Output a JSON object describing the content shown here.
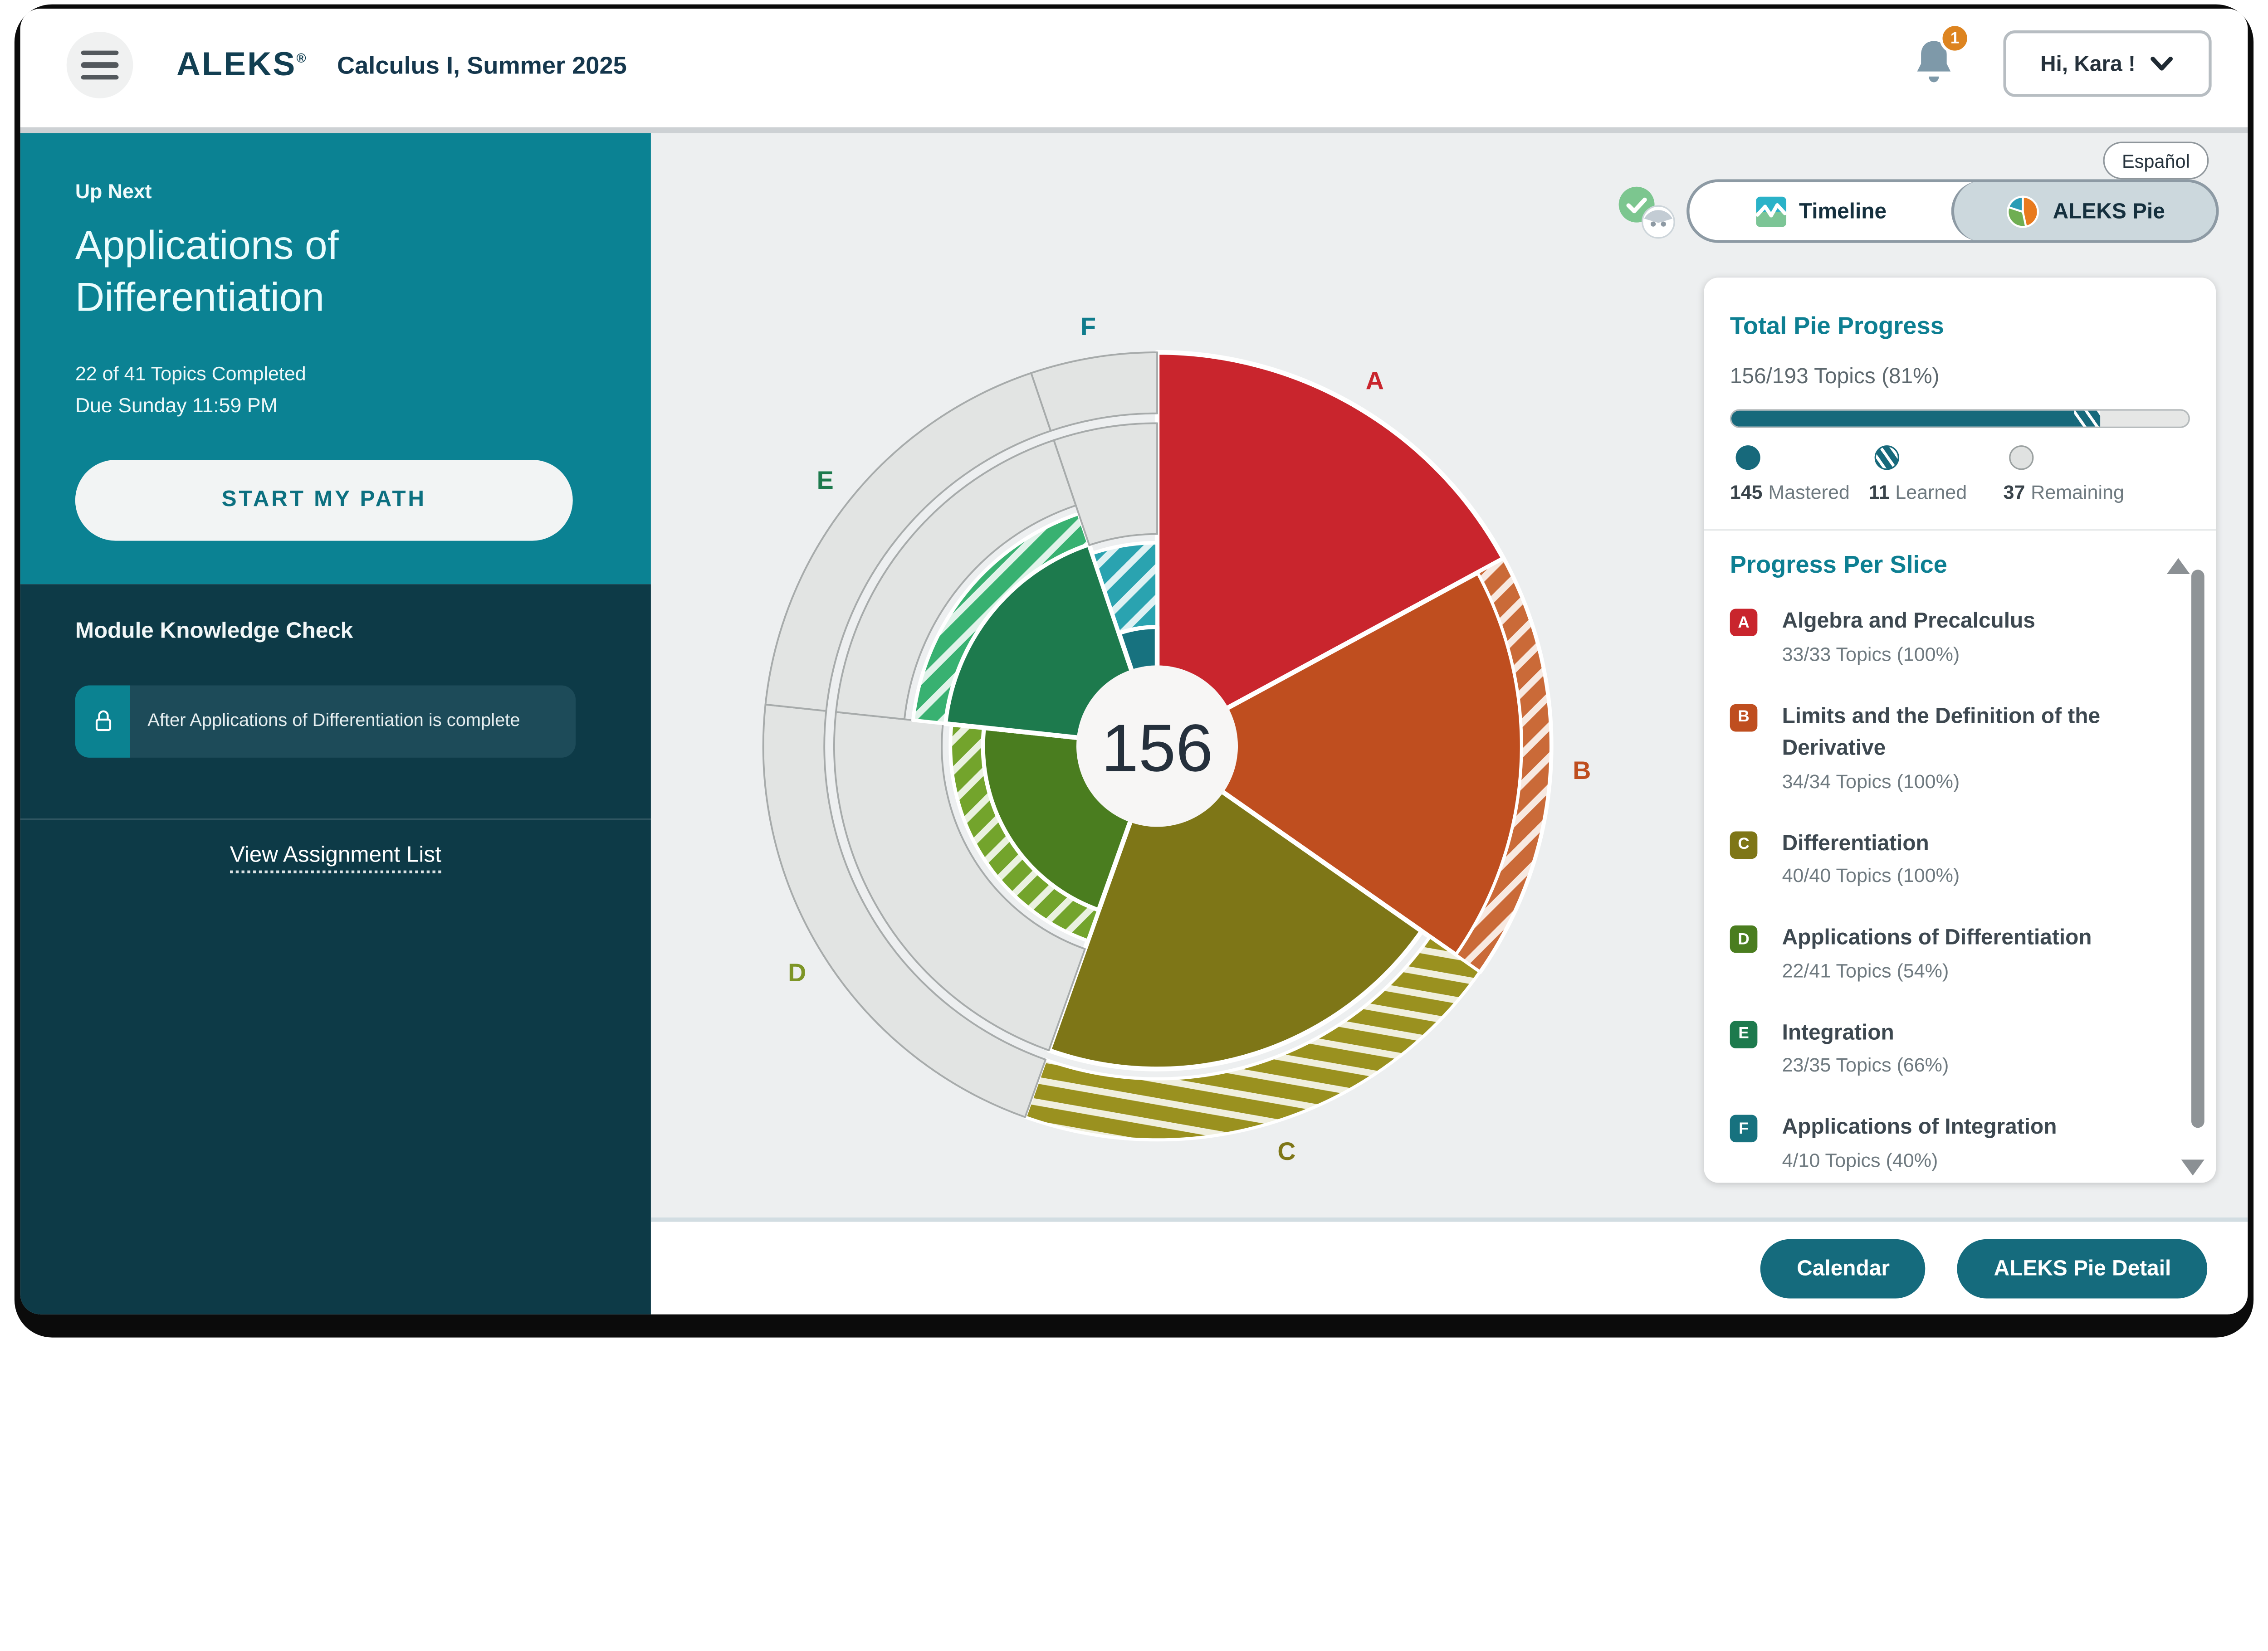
{
  "header": {
    "app_name": "ALEKS",
    "trademark": "®",
    "course_title": "Calculus I, Summer 2025",
    "notification_count": "1",
    "user_greeting": "Hi, Kara !"
  },
  "sidebar": {
    "up_next_label": "Up Next",
    "up_next_title": "Applications of Differentiation",
    "topics_completed": "22 of 41 Topics Completed",
    "due_text": "Due Sunday 11:59 PM",
    "start_button": "START MY PATH",
    "module_check_title": "Module Knowledge Check",
    "module_check_note": "After Applications of Differentiation is complete",
    "view_assignment_list": "View Assignment List",
    "teal_color": "#0b8293",
    "dark_color": "#0d3a47"
  },
  "main": {
    "language_button": "Español",
    "tabs": [
      {
        "label": "Timeline"
      },
      {
        "label": "ALEKS Pie"
      }
    ],
    "active_tab": "ALEKS Pie",
    "calendar_button": "Calendar",
    "pie_detail_button": "ALEKS Pie Detail"
  },
  "pie_panel": {
    "title": "Total Pie Progress",
    "summary": "156/193 Topics (81%)",
    "legend": [
      {
        "value": "145",
        "label": "Mastered",
        "style": "mastered"
      },
      {
        "value": "11",
        "label": "Learned",
        "style": "learned"
      },
      {
        "value": "37",
        "label": "Remaining",
        "style": "remaining"
      }
    ],
    "per_slice_title": "Progress Per Slice",
    "mastered_color": "#17697b",
    "remaining_color": "#e6e7e6"
  },
  "chart_data": {
    "type": "pie",
    "title": "ALEKS Pie progress by slice",
    "center_value": "156",
    "total_topics": 193,
    "completed_topics": 156,
    "mastered": 145,
    "learned": 11,
    "remaining": 37,
    "start_angle_deg": 0,
    "gray_color": "#e2e4e3",
    "gray_stroke": "#a7abab",
    "hub_color": "#f7f6f5",
    "hub_text_color": "#25303c",
    "slices": [
      {
        "letter": "A",
        "name": "Algebra and Precalculus",
        "completed": 33,
        "total": 33,
        "percent": 100,
        "topics_text": "33/33 Topics (100%)",
        "color": "#c9252d",
        "label_color": "#c9252d",
        "ring": "solid",
        "rim_hatch": false,
        "solid_to": 1,
        "hatch_to": 1,
        "hatch_base": "#d4575c",
        "hatch_angle": 45
      },
      {
        "letter": "B",
        "name": "Limits and the Definition of the Derivative",
        "completed": 34,
        "total": 34,
        "percent": 100,
        "topics_text": "34/34 Topics (100%)",
        "color": "#bf4e1f",
        "label_color": "#bf4e1f",
        "ring": "solid",
        "rim_hatch": true,
        "solid_to": 1,
        "hatch_to": 1,
        "hatch_base": "#ca6a38",
        "hatch_angle": 45
      },
      {
        "letter": "C",
        "name": "Differentiation",
        "completed": 40,
        "total": 40,
        "percent": 100,
        "topics_text": "40/40 Topics (100%)",
        "color": "#7e7617",
        "label_color": "#7e7617",
        "ring": "hatch",
        "rim_hatch": false,
        "solid_to": 1,
        "hatch_to": 1,
        "hatch_base": "#9a911f",
        "hatch_angle": 100
      },
      {
        "letter": "D",
        "name": "Applications of Differentiation",
        "completed": 22,
        "total": 41,
        "percent": 54,
        "topics_text": "22/41 Topics (54%)",
        "color": "#4a7d1f",
        "label_color": "#7d9526",
        "ring": "gray",
        "rim_hatch": false,
        "solid_to": 0.54,
        "hatch_to": 0.64,
        "hatch_base": "#73a42c",
        "hatch_angle": 45
      },
      {
        "letter": "E",
        "name": "Integration",
        "completed": 23,
        "total": 35,
        "percent": 66,
        "topics_text": "23/35 Topics (66%)",
        "color": "#1d7a4d",
        "label_color": "#1d7a4d",
        "ring": "gray",
        "rim_hatch": false,
        "solid_to": 0.66,
        "hatch_to": 0.76,
        "hatch_base": "#38b171",
        "hatch_angle": 45
      },
      {
        "letter": "F",
        "name": "Applications of Integration",
        "completed": 4,
        "total": 10,
        "percent": 40,
        "topics_text": "4/10 Topics (40%)",
        "color": "#17727f",
        "label_color": "#0f7c8c",
        "ring": "gray",
        "rim_hatch": false,
        "solid_to": 0.37,
        "hatch_to": 0.63,
        "hatch_base": "#2aa3b0",
        "hatch_angle": 45
      }
    ]
  }
}
